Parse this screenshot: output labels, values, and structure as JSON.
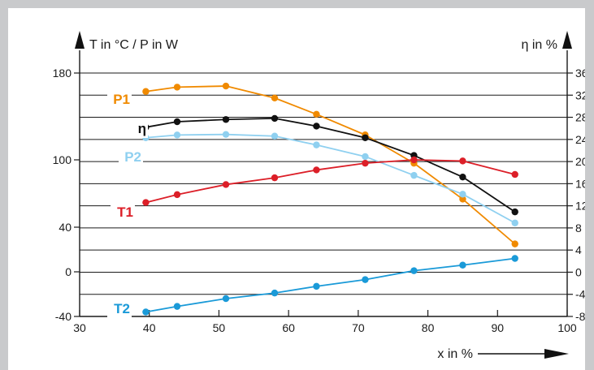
{
  "chart_data": {
    "type": "line",
    "x_axis": {
      "label": "x in %",
      "range": [
        30,
        100
      ],
      "ticks": [
        30,
        40,
        50,
        60,
        70,
        80,
        90,
        100
      ]
    },
    "y_left_axis": {
      "label": "T in °C / P in W",
      "range": [
        -40,
        180
      ],
      "ticks": [
        -40,
        0,
        40,
        100,
        180
      ],
      "tick_labels": [
        "-40",
        "0",
        "40",
        "100",
        "180"
      ],
      "display_positions": [
        -40,
        0,
        40,
        100,
        180
      ]
    },
    "y_right_axis": {
      "label": "η in %",
      "range": [
        -8,
        36
      ],
      "ticks": [
        -8,
        -4,
        0,
        4,
        8,
        12,
        16,
        20,
        24,
        28,
        32,
        36
      ]
    },
    "grid": "horizontal",
    "series": [
      {
        "name": "P1",
        "axis": "left",
        "color": "#f08a00",
        "x": [
          39.5,
          44,
          51,
          58,
          64,
          71,
          78,
          85,
          92.5
        ],
        "y": [
          163,
          167,
          168,
          157,
          142,
          123,
          97,
          65,
          25
        ]
      },
      {
        "name": "η",
        "axis": "right",
        "color": "#111111",
        "x": [
          39.5,
          44,
          51,
          58,
          64,
          71,
          78,
          85,
          92.5
        ],
        "y": [
          26.2,
          27.2,
          27.6,
          27.8,
          26.4,
          24.3,
          21.1,
          17.2,
          10.9
        ]
      },
      {
        "name": "P2",
        "axis": "right",
        "color": "#8fd0f0",
        "x": [
          39.5,
          44,
          51,
          58,
          64,
          71,
          78,
          85,
          92.5
        ],
        "y": [
          24.3,
          24.8,
          24.9,
          24.6,
          23.0,
          20.9,
          17.5,
          14.1,
          8.9
        ]
      },
      {
        "name": "T1",
        "axis": "left",
        "color": "#dc1f28",
        "x": [
          39.5,
          44,
          51,
          58,
          64,
          71,
          78,
          85,
          92.5
        ],
        "y": [
          62,
          69,
          78,
          84,
          91,
          97,
          100,
          99,
          87
        ]
      },
      {
        "name": "T2",
        "axis": "left",
        "color": "#1a9ad8",
        "x": [
          39.5,
          44,
          51,
          58,
          64,
          71,
          78,
          85,
          92.5
        ],
        "y": [
          -36,
          -31,
          -24,
          -19,
          -13,
          -7,
          1,
          6,
          12
        ]
      }
    ]
  }
}
